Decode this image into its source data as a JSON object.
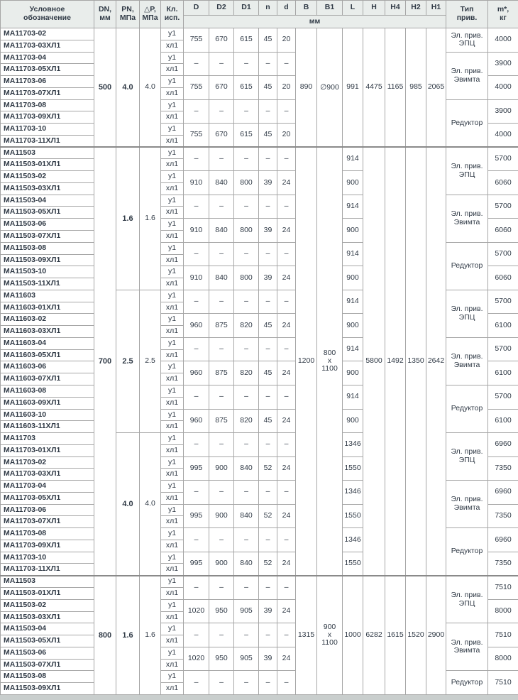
{
  "table": {
    "header": {
      "designation": "Условное\nобозначение",
      "dn": "DN,\nмм",
      "pn": "PN,\nМПа",
      "dp": "△P,\nМПа",
      "kl": "Кл.\nисп.",
      "dims": [
        "D",
        "D2",
        "D1",
        "n",
        "d",
        "B",
        "B1",
        "L",
        "H",
        "H4",
        "H2",
        "H1"
      ],
      "unit": "мм",
      "drive": "Тип\nприв.",
      "mass": "m*,\nкг"
    },
    "kl_labels": [
      "у1",
      "хл1"
    ],
    "dash": "–",
    "drive_labels": {
      "epc": "Эл. прив.\nЭПЦ",
      "evimta": "Эл. прив.\nЭвимта",
      "reductor": "Редуктор"
    },
    "groups": [
      {
        "dn": "500",
        "b": "890",
        "b1": "∅900",
        "l": "991",
        "h": "4475",
        "h4": "1165",
        "h2": "985",
        "h1": "2065",
        "subs": [
          {
            "pn": "4.0",
            "dp": "4.0",
            "pairs": [
              {
                "names": [
                  "МА11703-02",
                  "МА11703-03ХЛ1"
                ],
                "dims": [
                  "755",
                  "670",
                  "615",
                  "45",
                  "20"
                ],
                "mass": "4000"
              },
              {
                "names": [
                  "МА11703-04",
                  "МА11703-05ХЛ1"
                ],
                "dims": null,
                "mass": "3900"
              },
              {
                "names": [
                  "МА11703-06",
                  "МА11703-07ХЛ1"
                ],
                "dims": [
                  "755",
                  "670",
                  "615",
                  "45",
                  "20"
                ],
                "mass": "4000"
              },
              {
                "names": [
                  "МА11703-08",
                  "МА11703-09ХЛ1"
                ],
                "dims": null,
                "mass": "3900"
              },
              {
                "names": [
                  "МА11703-10",
                  "МА11703-11ХЛ1"
                ],
                "dims": [
                  "755",
                  "670",
                  "615",
                  "45",
                  "20"
                ],
                "mass": "4000"
              }
            ],
            "drives": [
              {
                "label": "Эл. прив.\nЭПЦ",
                "pairs": 1
              },
              {
                "label": "Эл. прив.\nЭвимта",
                "pairs": 2
              },
              {
                "label": "Редуктор",
                "pairs": 2
              }
            ]
          }
        ]
      },
      {
        "dn": "700",
        "b": "1200",
        "b1": "800\nх\n1100",
        "l": null,
        "h": "5800",
        "h4": "1492",
        "h2": "1350",
        "h1": "2642",
        "subs": [
          {
            "pn": "1.6",
            "dp": "1.6",
            "pairs": [
              {
                "names": [
                  "МА11503",
                  "МА11503-01ХЛ1"
                ],
                "dims": null,
                "l": "914",
                "mass": "5700"
              },
              {
                "names": [
                  "МА11503-02",
                  "МА11503-03ХЛ1"
                ],
                "dims": [
                  "910",
                  "840",
                  "800",
                  "39",
                  "24"
                ],
                "l": "900",
                "mass": "6060"
              },
              {
                "names": [
                  "МА11503-04",
                  "МА11503-05ХЛ1"
                ],
                "dims": null,
                "l": "914",
                "mass": "5700"
              },
              {
                "names": [
                  "МА11503-06",
                  "МА11503-07ХЛ1"
                ],
                "dims": [
                  "910",
                  "840",
                  "800",
                  "39",
                  "24"
                ],
                "l": "900",
                "mass": "6060"
              },
              {
                "names": [
                  "МА11503-08",
                  "МА11503-09ХЛ1"
                ],
                "dims": null,
                "l": "914",
                "mass": "5700"
              },
              {
                "names": [
                  "МА11503-10",
                  "МА11503-11ХЛ1"
                ],
                "dims": [
                  "910",
                  "840",
                  "800",
                  "39",
                  "24"
                ],
                "l": "900",
                "mass": "6060"
              }
            ],
            "drives": [
              {
                "label": "Эл. прив.\nЭПЦ",
                "pairs": 2
              },
              {
                "label": "Эл. прив.\nЭвимта",
                "pairs": 2
              },
              {
                "label": "Редуктор",
                "pairs": 2
              }
            ]
          },
          {
            "pn": "2.5",
            "dp": "2.5",
            "pairs": [
              {
                "names": [
                  "МА11603",
                  "МА11603-01ХЛ1"
                ],
                "dims": null,
                "l": "914",
                "mass": "5700"
              },
              {
                "names": [
                  "МА11603-02",
                  "МА11603-03ХЛ1"
                ],
                "dims": [
                  "960",
                  "875",
                  "820",
                  "45",
                  "24"
                ],
                "l": "900",
                "mass": "6100"
              },
              {
                "names": [
                  "МА11603-04",
                  "МА11603-05ХЛ1"
                ],
                "dims": null,
                "l": "914",
                "mass": "5700"
              },
              {
                "names": [
                  "МА11603-06",
                  "МА11603-07ХЛ1"
                ],
                "dims": [
                  "960",
                  "875",
                  "820",
                  "45",
                  "24"
                ],
                "l": "900",
                "mass": "6100"
              },
              {
                "names": [
                  "МА11603-08",
                  "МА11603-09ХЛ1"
                ],
                "dims": null,
                "l": "914",
                "mass": "5700"
              },
              {
                "names": [
                  "МА11603-10",
                  "МА11603-11ХЛ1"
                ],
                "dims": [
                  "960",
                  "875",
                  "820",
                  "45",
                  "24"
                ],
                "l": "900",
                "mass": "6100"
              }
            ],
            "drives": [
              {
                "label": "Эл. прив.\nЭПЦ",
                "pairs": 2
              },
              {
                "label": "Эл. прив.\nЭвимта",
                "pairs": 2
              },
              {
                "label": "Редуктор",
                "pairs": 2
              }
            ]
          },
          {
            "pn": "4.0",
            "dp": "4.0",
            "pairs": [
              {
                "names": [
                  "МА11703",
                  "МА11703-01ХЛ1"
                ],
                "dims": null,
                "l": "1346",
                "mass": "6960"
              },
              {
                "names": [
                  "МА11703-02",
                  "МА11703-03ХЛ1"
                ],
                "dims": [
                  "995",
                  "900",
                  "840",
                  "52",
                  "24"
                ],
                "l": "1550",
                "mass": "7350"
              },
              {
                "names": [
                  "МА11703-04",
                  "МА11703-05ХЛ1"
                ],
                "dims": null,
                "l": "1346",
                "mass": "6960"
              },
              {
                "names": [
                  "МА11703-06",
                  "МА11703-07ХЛ1"
                ],
                "dims": [
                  "995",
                  "900",
                  "840",
                  "52",
                  "24"
                ],
                "l": "1550",
                "mass": "7350"
              },
              {
                "names": [
                  "МА11703-08",
                  "МА11703-09ХЛ1"
                ],
                "dims": null,
                "l": "1346",
                "mass": "6960"
              },
              {
                "names": [
                  "МА11703-10",
                  "МА11703-11ХЛ1"
                ],
                "dims": [
                  "995",
                  "900",
                  "840",
                  "52",
                  "24"
                ],
                "l": "1550",
                "mass": "7350"
              }
            ],
            "drives": [
              {
                "label": "Эл. прив.\nЭПЦ",
                "pairs": 2
              },
              {
                "label": "Эл. прив.\nЭвимта",
                "pairs": 2
              },
              {
                "label": "Редуктор",
                "pairs": 2
              }
            ]
          }
        ]
      },
      {
        "dn": "800",
        "b": "1315",
        "b1": "900\nх\n1100",
        "l": "1000",
        "h": "6282",
        "h4": "1615",
        "h2": "1520",
        "h1": "2900",
        "subs": [
          {
            "pn": "1.6",
            "dp": "1.6",
            "pairs": [
              {
                "names": [
                  "МА11503",
                  "МА11503-01ХЛ1"
                ],
                "dims": null,
                "mass": "7510"
              },
              {
                "names": [
                  "МА11503-02",
                  "МА11503-03ХЛ1"
                ],
                "dims": [
                  "1020",
                  "950",
                  "905",
                  "39",
                  "24"
                ],
                "mass": "8000"
              },
              {
                "names": [
                  "МА11503-04",
                  "МА11503-05ХЛ1"
                ],
                "dims": null,
                "mass": "7510"
              },
              {
                "names": [
                  "МА11503-06",
                  "МА11503-07ХЛ1"
                ],
                "dims": [
                  "1020",
                  "950",
                  "905",
                  "39",
                  "24"
                ],
                "mass": "8000"
              },
              {
                "names": [
                  "МА11503-08",
                  "МА11503-09ХЛ1"
                ],
                "dims": null,
                "mass": "7510"
              }
            ],
            "drives": [
              {
                "label": "Эл. прив.\nЭПЦ",
                "pairs": 2
              },
              {
                "label": "Эл. прив.\nЭвимта",
                "pairs": 2
              },
              {
                "label": "Редуктор",
                "pairs": 1
              }
            ]
          }
        ]
      }
    ],
    "colors": {
      "header_bg": "#e9edeb",
      "text": "#303a46",
      "grid": "#a6a6a6",
      "section_line": "#8a8a8a",
      "page_bg": "#c9cecd"
    }
  }
}
